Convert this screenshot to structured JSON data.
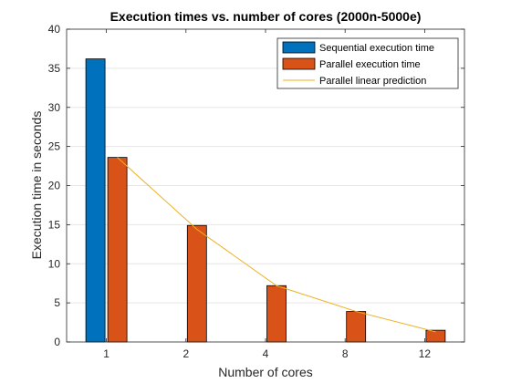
{
  "chart_data": {
    "type": "bar",
    "title": "Execution times vs. number of cores (2000n-5000e)",
    "xlabel": "Number of cores",
    "ylabel": "Execution time in seconds",
    "categories": [
      "1",
      "2",
      "4",
      "8",
      "12"
    ],
    "ylim": [
      0,
      40
    ],
    "yticks": [
      0,
      5,
      10,
      15,
      20,
      25,
      30,
      35,
      40
    ],
    "grid": "y-major",
    "legend_position": "top-right",
    "series": [
      {
        "name": "Sequential execution time",
        "kind": "bar",
        "color": "#0072BD",
        "values": [
          36.2,
          null,
          null,
          null,
          null
        ]
      },
      {
        "name": "Parallel execution time",
        "kind": "bar",
        "color": "#D95319",
        "values": [
          23.6,
          14.9,
          7.2,
          3.9,
          1.5
        ]
      },
      {
        "name": "Parallel linear prediction",
        "kind": "line",
        "color": "#EDB120",
        "values": [
          23.6,
          14.4,
          7.2,
          3.9,
          1.3
        ]
      }
    ]
  }
}
